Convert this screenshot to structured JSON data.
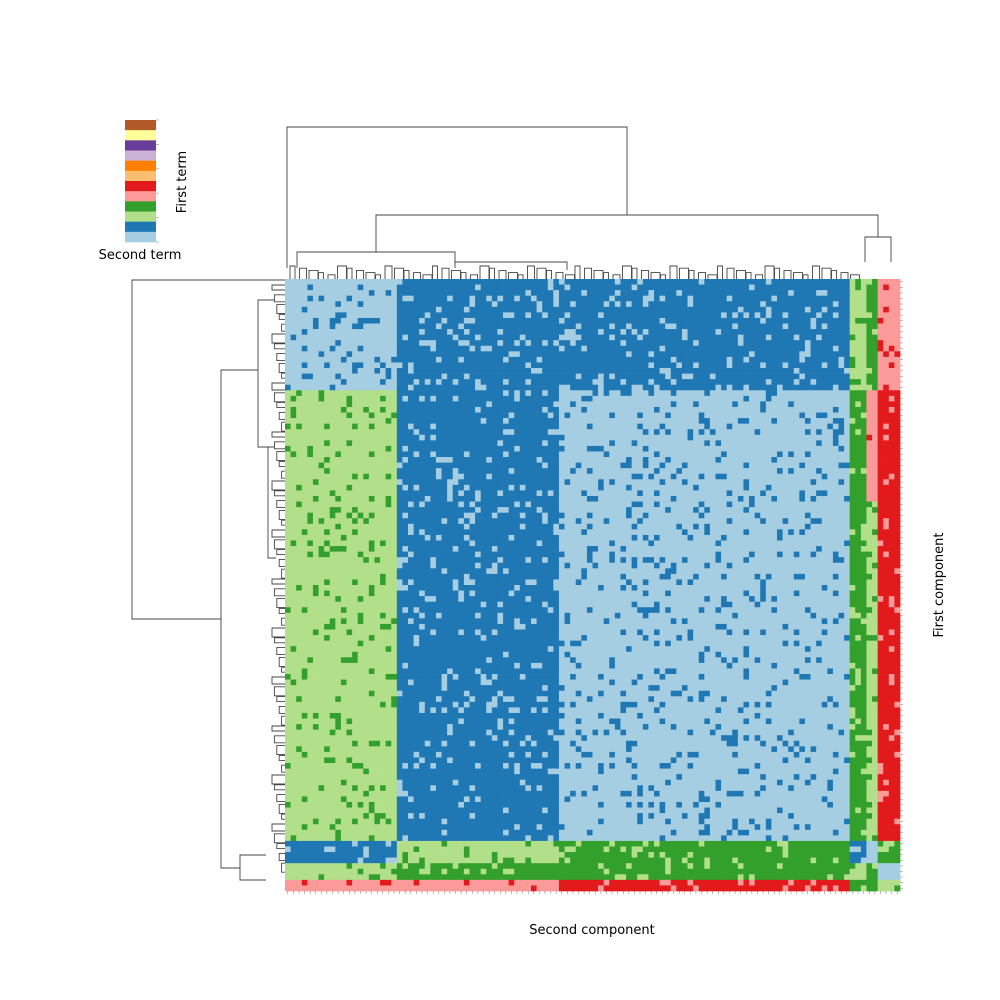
{
  "chart_data": {
    "type": "heatmap",
    "title": "",
    "xlabel": "Second component",
    "ylabel": "First component",
    "legend": {
      "placement": "top-left",
      "ylabel": "First term",
      "xlabel": "Second term",
      "colors": [
        "#a6cee3",
        "#1f78b4",
        "#b2df8a",
        "#33a02c",
        "#fb9a99",
        "#e31a1c",
        "#fdbf6f",
        "#ff7f00",
        "#cab2d6",
        "#6a3d9a",
        "#ffff99",
        "#b15928"
      ]
    },
    "grid": false,
    "n_rows": 110,
    "n_cols": 110,
    "dendrograms": [
      "row (left)",
      "column (top)"
    ],
    "block_structure": {
      "row_breaks": [
        20,
        40,
        101,
        105,
        108,
        110
      ],
      "col_breaks": [
        20,
        49,
        101,
        104,
        106,
        110
      ],
      "base_values": [
        [
          0,
          1,
          1,
          2,
          3,
          4
        ],
        [
          2,
          1,
          0,
          3,
          4,
          5
        ],
        [
          2,
          1,
          0,
          3,
          2,
          5
        ],
        [
          1,
          2,
          3,
          1,
          0,
          3
        ],
        [
          2,
          3,
          3,
          2,
          3,
          0
        ],
        [
          4,
          4,
          5,
          3,
          3,
          2
        ]
      ],
      "scatter_fraction": 0.12
    }
  }
}
